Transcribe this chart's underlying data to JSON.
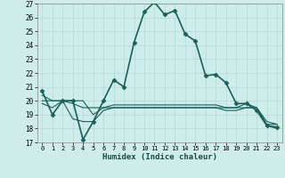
{
  "xlabel": "Humidex (Indice chaleur)",
  "xlim": [
    -0.5,
    23.5
  ],
  "ylim": [
    17,
    27
  ],
  "yticks": [
    17,
    18,
    19,
    20,
    21,
    22,
    23,
    24,
    25,
    26,
    27
  ],
  "xticks": [
    0,
    1,
    2,
    3,
    4,
    5,
    6,
    7,
    8,
    9,
    10,
    11,
    12,
    13,
    14,
    15,
    16,
    17,
    18,
    19,
    20,
    21,
    22,
    23
  ],
  "bg_color": "#ceecea",
  "grid_color": "#b0d8d5",
  "line_color": "#1a5f5a",
  "series": [
    {
      "x": [
        0,
        1,
        2,
        3,
        4,
        5,
        6,
        7,
        8,
        9,
        10,
        11,
        12,
        13,
        14,
        15,
        16,
        17,
        18,
        19,
        20,
        21,
        22,
        23
      ],
      "y": [
        20.7,
        19.0,
        20.0,
        20.0,
        17.2,
        18.5,
        20.0,
        21.5,
        21.0,
        24.2,
        26.4,
        27.1,
        26.2,
        26.5,
        24.8,
        24.3,
        21.8,
        21.9,
        21.3,
        19.8,
        19.8,
        19.3,
        18.2,
        18.1
      ],
      "marker": "D",
      "markersize": 2.5,
      "linewidth": 1.2
    },
    {
      "x": [
        0,
        1,
        2,
        3,
        4,
        5,
        6,
        7,
        8,
        9,
        10,
        11,
        12,
        13,
        14,
        15,
        16,
        17,
        18,
        19,
        20,
        21,
        22,
        23
      ],
      "y": [
        19.8,
        19.5,
        20.0,
        19.8,
        19.5,
        19.5,
        19.5,
        19.5,
        19.5,
        19.5,
        19.5,
        19.5,
        19.5,
        19.5,
        19.5,
        19.5,
        19.5,
        19.5,
        19.5,
        19.5,
        19.5,
        19.5,
        18.2,
        18.0
      ],
      "marker": null,
      "linewidth": 0.8
    },
    {
      "x": [
        0,
        1,
        2,
        3,
        4,
        5,
        6,
        7,
        8,
        9,
        10,
        11,
        12,
        13,
        14,
        15,
        16,
        17,
        18,
        19,
        20,
        21,
        22,
        23
      ],
      "y": [
        20.0,
        20.0,
        20.0,
        18.7,
        18.5,
        18.5,
        19.3,
        19.5,
        19.5,
        19.5,
        19.5,
        19.5,
        19.5,
        19.5,
        19.5,
        19.5,
        19.5,
        19.5,
        19.3,
        19.3,
        19.5,
        19.5,
        18.3,
        18.3
      ],
      "marker": null,
      "linewidth": 0.8
    },
    {
      "x": [
        0,
        1,
        2,
        3,
        4,
        5,
        6,
        7,
        8,
        9,
        10,
        11,
        12,
        13,
        14,
        15,
        16,
        17,
        18,
        19,
        20,
        21,
        22,
        23
      ],
      "y": [
        20.4,
        20.0,
        20.0,
        20.0,
        20.0,
        19.0,
        19.5,
        19.7,
        19.7,
        19.7,
        19.7,
        19.7,
        19.7,
        19.7,
        19.7,
        19.7,
        19.7,
        19.7,
        19.5,
        19.5,
        19.8,
        19.5,
        18.5,
        18.3
      ],
      "marker": null,
      "linewidth": 0.8
    }
  ]
}
